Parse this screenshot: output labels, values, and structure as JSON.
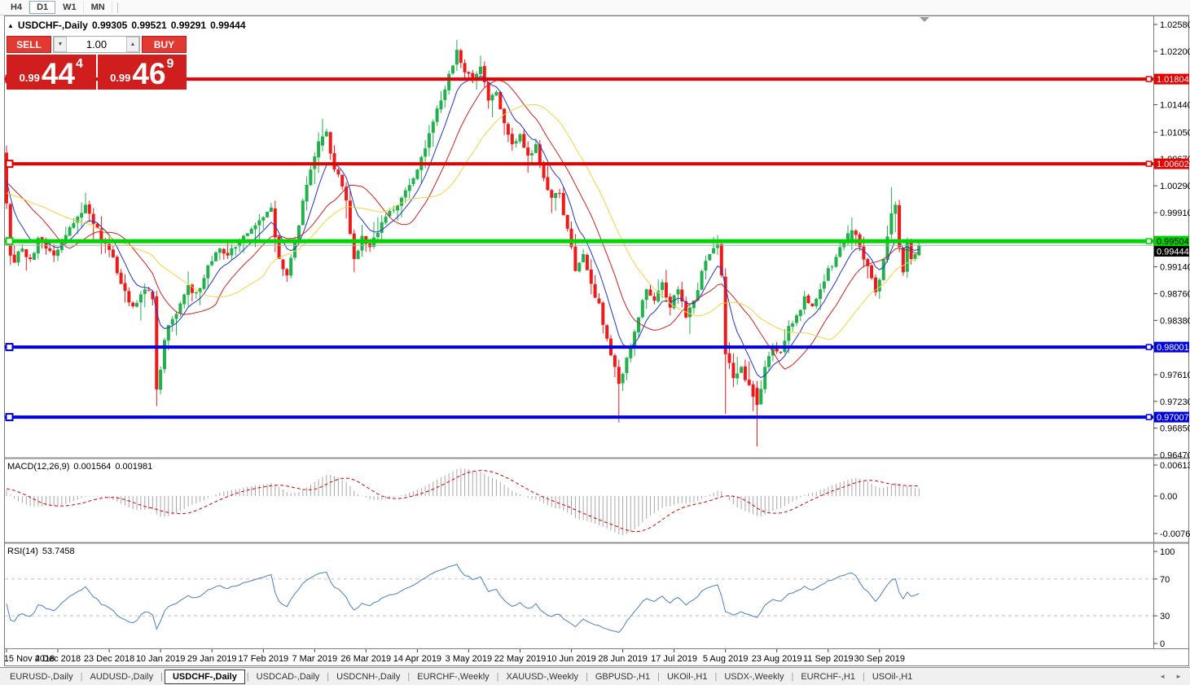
{
  "toolbar": {
    "timeframes": [
      {
        "label": "H4",
        "active": false
      },
      {
        "label": "D1",
        "active": true
      },
      {
        "label": "W1",
        "active": false
      },
      {
        "label": "MN",
        "active": false
      }
    ]
  },
  "chart_header": {
    "collapse_arrow": "▲",
    "title": "USDCHF-,Daily",
    "open": "0.99305",
    "high": "0.99521",
    "low": "0.99291",
    "close": "0.99444"
  },
  "trade_panel": {
    "sell_label": "SELL",
    "buy_label": "BUY",
    "volume": "1.00",
    "spinner_down": "▼",
    "spinner_up": "▲",
    "sell": {
      "prefix": "0.99",
      "big": "44",
      "sup": "4"
    },
    "buy": {
      "prefix": "0.99",
      "big": "46",
      "sup": "9"
    }
  },
  "price_scale": {
    "ticks": [
      "1.02580",
      "1.02200",
      "1.01440",
      "1.01050",
      "1.00670",
      "1.00290",
      "0.99910",
      "0.99140",
      "0.98760",
      "0.98380",
      "0.97610",
      "0.97230",
      "0.96850",
      "0.96470"
    ]
  },
  "macd_panel": {
    "label": "MACD(12,26,9)",
    "value1": "0.001564",
    "value2": "0.001981",
    "scale": [
      "0.00613",
      "0.00",
      "-0.00761"
    ]
  },
  "rsi_panel": {
    "label": "RSI(14)",
    "value": "53.7458",
    "scale": [
      "100",
      "70",
      "30",
      "0"
    ]
  },
  "tabs": {
    "separator": "|",
    "scroll_left": "◄",
    "scroll_right": "►",
    "items": [
      {
        "label": "EURUSD-,Daily",
        "active": false
      },
      {
        "label": "AUDUSD-,Daily",
        "active": false
      },
      {
        "label": "USDCHF-,Daily",
        "active": true
      },
      {
        "label": "USDCAD-,Daily",
        "active": false
      },
      {
        "label": "USDCNH-,Daily",
        "active": false
      },
      {
        "label": "EURCHF-,Weekly",
        "active": false
      },
      {
        "label": "XAUUSD-,Weekly",
        "active": false
      },
      {
        "label": "GBPUSD-,H1",
        "active": false
      },
      {
        "label": "UKOil-,H1",
        "active": false
      },
      {
        "label": "USDX-,Weekly",
        "active": false
      },
      {
        "label": "EURCHF-,H1",
        "active": false
      },
      {
        "label": "USOil-,H1",
        "active": false
      }
    ]
  },
  "chart_data": {
    "type": "candlestick",
    "symbol": "USDCHF",
    "timeframe": "Daily",
    "title": "USDCHF-,Daily",
    "last_ohlc": {
      "open": 0.99305,
      "high": 0.99521,
      "low": 0.99291,
      "close": 0.99444
    },
    "current_price": 0.99444,
    "grid": false,
    "ylim": [
      0.9625,
      1.0262
    ],
    "x_tick_labels": [
      "15 Nov 2018",
      "4 Dec 2018",
      "23 Dec 2018",
      "10 Jan 2019",
      "29 Jan 2019",
      "17 Feb 2019",
      "7 Mar 2019",
      "26 Mar 2019",
      "14 Apr 2019",
      "3 May 2019",
      "22 May 2019",
      "10 Jun 2019",
      "28 Jun 2019",
      "17 Jul 2019",
      "5 Aug 2019",
      "23 Aug 2019",
      "11 Sep 2019",
      "30 Sep 2019"
    ],
    "bars_between_labels": 13,
    "bars_total": 232,
    "horizontal_lines": [
      {
        "value": 1.01804,
        "label": "1.01804",
        "color": "#e60000",
        "width": 4,
        "text": "#ffffff"
      },
      {
        "value": 1.00602,
        "label": "1.00602",
        "color": "#e60000",
        "width": 4,
        "text": "#ffffff"
      },
      {
        "value": 0.99504,
        "label": "0.99504",
        "color": "#00d300",
        "width": 5,
        "text": "#000000"
      },
      {
        "value": 0.98001,
        "label": "0.98001",
        "color": "#0000dd",
        "width": 4,
        "text": "#ffffff"
      },
      {
        "value": 0.97007,
        "label": "0.97007",
        "color": "#0000dd",
        "width": 4,
        "text": "#ffffff"
      }
    ],
    "candle_colors": {
      "bull": "#21b14c",
      "bear": "#ee1a1a"
    },
    "moving_averages": [
      {
        "name": "fast",
        "method": "ema",
        "period": 8,
        "color": "#2233cc"
      },
      {
        "name": "medium",
        "method": "sma",
        "period": 16,
        "color": "#cc2222"
      },
      {
        "name": "slow",
        "method": "sma",
        "period": 28,
        "color": "#f2d43f"
      }
    ],
    "close_anchors": [
      [
        0,
        1.0004
      ],
      [
        1,
        0.993
      ],
      [
        2,
        0.992
      ],
      [
        4,
        0.994
      ],
      [
        6,
        0.9925
      ],
      [
        8,
        0.9955
      ],
      [
        10,
        0.994
      ],
      [
        12,
        0.993
      ],
      [
        14,
        0.995
      ],
      [
        16,
        0.997
      ],
      [
        18,
        0.9985
      ],
      [
        20,
        1.0002
      ],
      [
        22,
        0.9975
      ],
      [
        24,
        0.995
      ],
      [
        26,
        0.9938
      ],
      [
        28,
        0.9905
      ],
      [
        30,
        0.988
      ],
      [
        32,
        0.9858
      ],
      [
        34,
        0.9875
      ],
      [
        36,
        0.988
      ],
      [
        37,
        0.9868
      ],
      [
        38,
        0.974
      ],
      [
        39,
        0.9768
      ],
      [
        40,
        0.981
      ],
      [
        42,
        0.984
      ],
      [
        44,
        0.9862
      ],
      [
        46,
        0.9888
      ],
      [
        48,
        0.9878
      ],
      [
        50,
        0.9898
      ],
      [
        52,
        0.9922
      ],
      [
        54,
        0.994
      ],
      [
        56,
        0.993
      ],
      [
        58,
        0.9942
      ],
      [
        60,
        0.9958
      ],
      [
        62,
        0.9968
      ],
      [
        64,
        0.998
      ],
      [
        66,
        0.9992
      ],
      [
        67,
        0.9998
      ],
      [
        69,
        0.9925
      ],
      [
        71,
        0.9902
      ],
      [
        73,
        0.995
      ],
      [
        75,
        1.0008
      ],
      [
        77,
        1.0052
      ],
      [
        79,
        1.0092
      ],
      [
        81,
        1.0106
      ],
      [
        83,
        1.0052
      ],
      [
        85,
        1.0028
      ],
      [
        86,
        1.0008
      ],
      [
        88,
        0.9925
      ],
      [
        90,
        0.9958
      ],
      [
        92,
        0.9942
      ],
      [
        94,
        0.9962
      ],
      [
        96,
        0.9985
      ],
      [
        98,
        0.9995
      ],
      [
        100,
        1.0012
      ],
      [
        102,
        1.003
      ],
      [
        104,
        1.0052
      ],
      [
        106,
        1.0082
      ],
      [
        108,
        1.012
      ],
      [
        110,
        1.015
      ],
      [
        112,
        1.0188
      ],
      [
        114,
        1.0222
      ],
      [
        116,
        1.019
      ],
      [
        118,
        1.0178
      ],
      [
        120,
        1.0198
      ],
      [
        122,
        1.015
      ],
      [
        124,
        1.0162
      ],
      [
        126,
        1.0118
      ],
      [
        128,
        1.0088
      ],
      [
        130,
        1.0102
      ],
      [
        132,
        1.0072
      ],
      [
        134,
        1.0088
      ],
      [
        136,
        1.004
      ],
      [
        138,
        1.0012
      ],
      [
        140,
        1.0018
      ],
      [
        142,
        0.9968
      ],
      [
        144,
        0.9908
      ],
      [
        146,
        0.9932
      ],
      [
        148,
        0.989
      ],
      [
        150,
        0.9862
      ],
      [
        152,
        0.9812
      ],
      [
        154,
        0.9772
      ],
      [
        155,
        0.9748
      ],
      [
        156,
        0.9762
      ],
      [
        158,
        0.9802
      ],
      [
        160,
        0.9842
      ],
      [
        162,
        0.9882
      ],
      [
        164,
        0.9866
      ],
      [
        166,
        0.9892
      ],
      [
        168,
        0.9856
      ],
      [
        170,
        0.9882
      ],
      [
        172,
        0.9842
      ],
      [
        174,
        0.9866
      ],
      [
        176,
        0.9908
      ],
      [
        178,
        0.9932
      ],
      [
        180,
        0.9946
      ],
      [
        181,
        0.9902
      ],
      [
        182,
        0.979
      ],
      [
        184,
        0.9756
      ],
      [
        186,
        0.9772
      ],
      [
        188,
        0.9746
      ],
      [
        190,
        0.9718
      ],
      [
        192,
        0.9772
      ],
      [
        194,
        0.9802
      ],
      [
        196,
        0.9792
      ],
      [
        198,
        0.983
      ],
      [
        200,
        0.9845
      ],
      [
        202,
        0.9872
      ],
      [
        204,
        0.9858
      ],
      [
        206,
        0.9882
      ],
      [
        208,
        0.9912
      ],
      [
        210,
        0.9928
      ],
      [
        212,
        0.9948
      ],
      [
        214,
        0.9966
      ],
      [
        216,
        0.9942
      ],
      [
        218,
        0.9915
      ],
      [
        220,
        0.9878
      ],
      [
        222,
        0.9925
      ],
      [
        224,
        0.999
      ],
      [
        225,
        1.0002
      ],
      [
        226,
        0.9942
      ],
      [
        227,
        0.9906
      ],
      [
        228,
        0.9952
      ],
      [
        229,
        0.9925
      ],
      [
        230,
        0.9932
      ],
      [
        231,
        0.99444
      ]
    ],
    "special_bars": {
      "0": [
        1.0076,
        1.0086,
        0.9996,
        1.0004
      ],
      "38": [
        0.9872,
        0.988,
        0.9716,
        0.974
      ],
      "80": [
        1.0086,
        1.0124,
        1.0078,
        1.0099
      ],
      "114": [
        1.0201,
        1.0236,
        1.0192,
        1.0222
      ],
      "155": [
        0.9772,
        0.9782,
        0.9693,
        0.9748
      ],
      "182": [
        0.99,
        0.9912,
        0.9705,
        0.979
      ],
      "190": [
        0.9742,
        0.9752,
        0.9659,
        0.9718
      ],
      "214": [
        0.995,
        0.9984,
        0.9938,
        0.9966
      ],
      "224": [
        0.996,
        1.0027,
        0.9954,
        0.999
      ],
      "231": [
        0.99305,
        0.99521,
        0.99291,
        0.99444
      ]
    },
    "indicators": {
      "macd": {
        "params": [
          12,
          26,
          9
        ],
        "current_macd": 0.001564,
        "current_signal": 0.001981,
        "ymax": 0.00613,
        "ymin": -0.00761,
        "histogram_color": "#a8a8a8",
        "signal_color": "#d40000"
      },
      "rsi": {
        "period": 14,
        "current": 53.7458,
        "levels": [
          70,
          30
        ],
        "range": [
          0,
          100
        ],
        "color": "#4a7fc1"
      }
    }
  }
}
